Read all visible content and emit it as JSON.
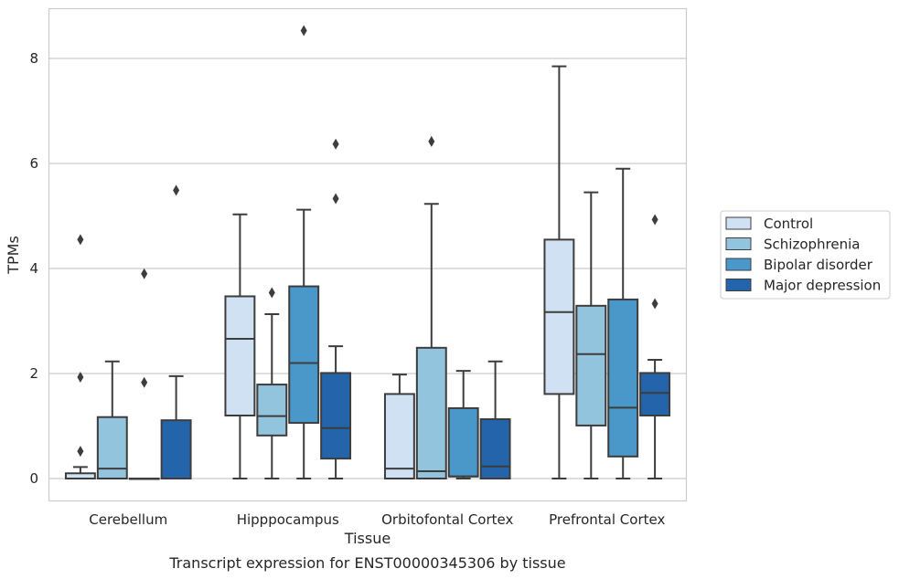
{
  "caption": "Transcript expression for ENST00000345306 by tissue",
  "colors": {
    "Control": "#cfe1f2",
    "Schizophrenia": "#93c4de",
    "Bipolar disorder": "#4a98c9",
    "Major depression": "#2364aa",
    "grid": "#cccccc",
    "line": "#3d3d3d"
  },
  "chart_data": {
    "type": "boxplot",
    "xlabel": "Tissue",
    "ylabel": "TPMs",
    "ylim": [
      -0.4,
      9.0
    ],
    "yticks": [
      0,
      2,
      4,
      6,
      8
    ],
    "grid": "horizontal",
    "legend_position": "right",
    "categories": [
      "Cerebellum",
      "Hipppocampus",
      "Orbitofontal Cortex",
      "Prefrontal Cortex"
    ],
    "series": [
      {
        "name": "Control",
        "boxes": [
          {
            "whislo": 0.0,
            "q1": 0.0,
            "med": 0.0,
            "q3": 0.1,
            "whishi": 0.22,
            "fliers": [
              0.52,
              1.93,
              4.55
            ]
          },
          {
            "whislo": 0.0,
            "q1": 1.2,
            "med": 2.66,
            "q3": 3.47,
            "whishi": 5.03,
            "fliers": []
          },
          {
            "whislo": 0.0,
            "q1": 0.0,
            "med": 0.19,
            "q3": 1.61,
            "whishi": 1.98,
            "fliers": []
          },
          {
            "whislo": 0.0,
            "q1": 1.61,
            "med": 3.17,
            "q3": 4.55,
            "whishi": 7.85,
            "fliers": []
          }
        ]
      },
      {
        "name": "Schizophrenia",
        "boxes": [
          {
            "whislo": 0.0,
            "q1": 0.0,
            "med": 0.19,
            "q3": 1.17,
            "whishi": 2.23,
            "fliers": []
          },
          {
            "whislo": 0.0,
            "q1": 0.82,
            "med": 1.19,
            "q3": 1.79,
            "whishi": 3.13,
            "fliers": [
              3.54
            ]
          },
          {
            "whislo": 0.0,
            "q1": 0.0,
            "med": 0.14,
            "q3": 2.49,
            "whishi": 5.23,
            "fliers": [
              6.42
            ]
          },
          {
            "whislo": 0.0,
            "q1": 1.01,
            "med": 2.37,
            "q3": 3.29,
            "whishi": 5.45,
            "fliers": []
          }
        ]
      },
      {
        "name": "Bipolar disorder",
        "boxes": [
          {
            "whislo": 0.0,
            "q1": 0.0,
            "med": 0.0,
            "q3": 0.0,
            "whishi": 0.0,
            "fliers": [
              1.83,
              3.9
            ]
          },
          {
            "whislo": 0.0,
            "q1": 1.06,
            "med": 2.2,
            "q3": 3.66,
            "whishi": 5.12,
            "fliers": [
              8.53
            ]
          },
          {
            "whislo": 0.0,
            "q1": 0.04,
            "med": 0.04,
            "q3": 1.34,
            "whishi": 2.05,
            "fliers": []
          },
          {
            "whislo": 0.0,
            "q1": 0.42,
            "med": 1.35,
            "q3": 3.41,
            "whishi": 5.9,
            "fliers": []
          }
        ]
      },
      {
        "name": "Major depression",
        "boxes": [
          {
            "whislo": 0.0,
            "q1": 0.0,
            "med": 0.0,
            "q3": 1.11,
            "whishi": 1.95,
            "fliers": [
              5.49
            ]
          },
          {
            "whislo": 0.0,
            "q1": 0.38,
            "med": 0.96,
            "q3": 2.01,
            "whishi": 2.52,
            "fliers": [
              5.33,
              6.37
            ]
          },
          {
            "whislo": 0.0,
            "q1": 0.0,
            "med": 0.23,
            "q3": 1.13,
            "whishi": 2.23,
            "fliers": []
          },
          {
            "whislo": 0.0,
            "q1": 1.2,
            "med": 1.63,
            "q3": 2.01,
            "whishi": 2.26,
            "fliers": [
              3.33,
              4.93
            ]
          }
        ]
      }
    ]
  }
}
